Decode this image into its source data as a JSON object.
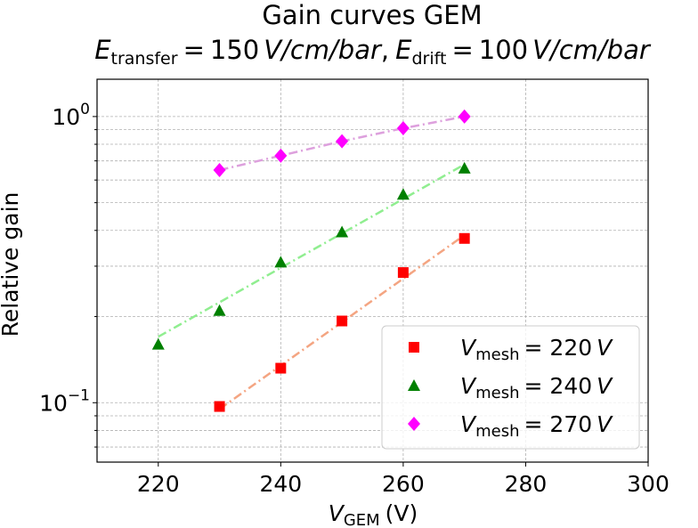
{
  "chart_data": {
    "type": "line",
    "title": {
      "line1": "Gain curves GEM",
      "e_symbol": "E",
      "transfer_sub": "transfer",
      "transfer_value": "150",
      "drift_sub": "drift",
      "drift_value": "100",
      "unit": "V/cm/bar",
      "separator": ",",
      "equals": "="
    },
    "xlabel": {
      "symbol": "V",
      "sub": "GEM",
      "unit": "(V)"
    },
    "ylabel": "Relative gain",
    "yscale": "log",
    "xlim": [
      210,
      300
    ],
    "ylim": [
      0.062,
      1.35
    ],
    "grid": true,
    "x_ticks": [
      220,
      240,
      260,
      280,
      300
    ],
    "y_ticks": [
      {
        "value": 0.1,
        "base": "10",
        "exp": "−1"
      },
      {
        "value": 1,
        "base": "10",
        "exp": "0"
      }
    ],
    "legend_position": "lower-right",
    "series": [
      {
        "name": "V_mesh = 220 V",
        "label_symbol": "V",
        "label_sub": "mesh",
        "label_value": "= 220",
        "label_unit": "V",
        "marker": "square",
        "marker_color": "#ff0000",
        "fit_color": "#f4a582",
        "x": [
          230,
          240,
          250,
          260,
          270
        ],
        "y": [
          0.097,
          0.132,
          0.193,
          0.285,
          0.375
        ],
        "fit_x": [
          230,
          270
        ],
        "fit_y": [
          0.095,
          0.385
        ]
      },
      {
        "name": "V_mesh = 240 V",
        "label_symbol": "V",
        "label_sub": "mesh",
        "label_value": "= 240",
        "label_unit": "V",
        "marker": "triangle",
        "marker_color": "#008000",
        "fit_color": "#90ee90",
        "x": [
          220,
          230,
          240,
          250,
          260,
          270
        ],
        "y": [
          0.16,
          0.21,
          0.31,
          0.395,
          0.535,
          0.66
        ],
        "fit_x": [
          220,
          270
        ],
        "fit_y": [
          0.17,
          0.68
        ]
      },
      {
        "name": "V_mesh = 270 V",
        "label_symbol": "V",
        "label_sub": "mesh",
        "label_value": "= 270",
        "label_unit": "V",
        "marker": "diamond",
        "marker_color": "#ff00ff",
        "fit_color": "#dda0dd",
        "x": [
          230,
          240,
          250,
          260,
          270
        ],
        "y": [
          0.65,
          0.73,
          0.82,
          0.91,
          1.0
        ],
        "fit_x": [
          230,
          240,
          250,
          260,
          270
        ],
        "fit_y": [
          0.65,
          0.73,
          0.82,
          0.91,
          1.0
        ]
      }
    ]
  }
}
